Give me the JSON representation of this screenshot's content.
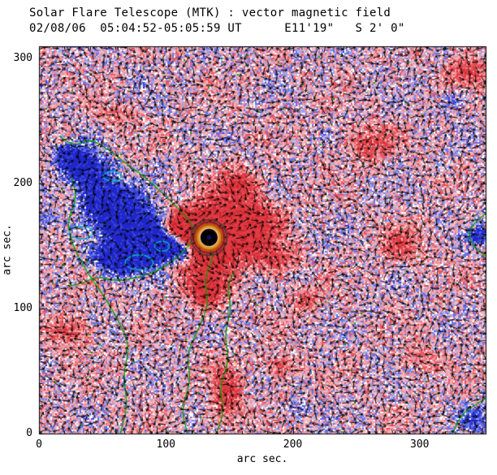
{
  "header": {
    "title_line1": "Solar Flare Telescope (MTK) : vector magnetic field",
    "title_line2": "02/08/06  05:04:52-05:05:59 UT      E11'19\"   S 2' 0\""
  },
  "chart_data": {
    "type": "heatmap",
    "title": "Solar Flare Telescope (MTK) : vector magnetic field",
    "subtitle": "02/08/06  05:04:52-05:05:59 UT      E11'19\"   S 2' 0\"",
    "xlabel": "arc sec.",
    "ylabel": "arc sec.",
    "xlim": [
      0,
      352
    ],
    "ylim": [
      0,
      310
    ],
    "xticks": [
      0,
      100,
      200,
      300
    ],
    "yticks": [
      0,
      100,
      200,
      300
    ],
    "minor_tick_step": 20,
    "grid": false,
    "legend": "none",
    "seed": 1337,
    "base_bias": 0.05,
    "vector_grid_step": 6,
    "colors": {
      "background": "#ffffff",
      "box": "#000000",
      "vector": "#000000",
      "positive_weak": "#f5b9c1",
      "positive_mid": "#ef949c",
      "positive_strong": "#e65a60",
      "positive_max": "#e03a42",
      "positive_deep": "#c8242c",
      "negative_weak": "#9aa2ee",
      "negative_mid": "#6672e6",
      "negative_strong": "#3a46dc",
      "negative_max": "#2026c8",
      "speckle_white": "#ffffff",
      "speckle_lavender": "#b9bce9",
      "contour_green": "#00a000",
      "contour_cyan": "#00c4c4"
    },
    "sunspot": {
      "x": 134,
      "y": 157,
      "core_radius_px": 10.5,
      "core_color": "#000000",
      "inner_dot": {
        "r": 3,
        "color": "#101060"
      },
      "rings": [
        {
          "r": 22,
          "color": "#3a3a3a",
          "w": 1.5
        },
        {
          "r": 19,
          "color": "#8a1c1c",
          "w": 2
        },
        {
          "r": 16,
          "color": "#b85410",
          "w": 2.5
        },
        {
          "r": 13.5,
          "color": "#d49a10",
          "w": 2.5
        },
        {
          "r": 11.5,
          "color": "#f0e4b8",
          "w": 1.2
        }
      ]
    },
    "positive_blobs": [
      [
        134,
        157,
        2.1,
        26,
        22
      ],
      [
        132,
        115,
        0.8,
        16,
        14
      ],
      [
        168,
        168,
        0.9,
        20,
        16
      ],
      [
        158,
        198,
        0.7,
        16,
        13
      ],
      [
        112,
        165,
        0.9,
        10,
        8
      ],
      [
        185,
        140,
        0.6,
        16,
        12
      ],
      [
        260,
        232,
        0.45,
        18,
        14
      ],
      [
        338,
        290,
        0.5,
        16,
        13
      ],
      [
        286,
        150,
        0.45,
        16,
        13
      ],
      [
        148,
        30,
        0.6,
        12,
        24
      ],
      [
        190,
        54,
        0.45,
        12,
        10
      ],
      [
        24,
        82,
        0.5,
        16,
        12
      ],
      [
        212,
        107,
        0.4,
        12,
        10
      ],
      [
        60,
        255,
        0.35,
        14,
        10
      ],
      [
        300,
        60,
        0.35,
        14,
        10
      ]
    ],
    "negative_blobs": [
      [
        55,
        185,
        1.2,
        20,
        16
      ],
      [
        75,
        165,
        1.4,
        20,
        16
      ],
      [
        90,
        150,
        1.2,
        16,
        12
      ],
      [
        65,
        140,
        1.2,
        20,
        12
      ],
      [
        38,
        210,
        1.0,
        16,
        13
      ],
      [
        25,
        222,
        0.8,
        12,
        10
      ],
      [
        105,
        150,
        1.0,
        12,
        10
      ],
      [
        116,
        145,
        0.8,
        9,
        8
      ],
      [
        347,
        158,
        0.7,
        9,
        7
      ],
      [
        345,
        12,
        0.5,
        12,
        9
      ],
      [
        330,
        268,
        0.4,
        10,
        8
      ],
      [
        5,
        172,
        0.4,
        8,
        8
      ],
      [
        205,
        18,
        0.3,
        10,
        8
      ]
    ],
    "green_contours": [
      [
        [
          64,
          0
        ],
        [
          70,
          22
        ],
        [
          66,
          48
        ],
        [
          72,
          70
        ],
        [
          62,
          92
        ],
        [
          50,
          112
        ],
        [
          36,
          132
        ],
        [
          26,
          152
        ],
        [
          22,
          170
        ],
        [
          30,
          188
        ],
        [
          26,
          205
        ]
      ],
      [
        [
          117,
          0
        ],
        [
          112,
          20
        ],
        [
          120,
          42
        ],
        [
          116,
          64
        ],
        [
          126,
          84
        ],
        [
          134,
          104
        ],
        [
          130,
          124
        ],
        [
          138,
          142
        ],
        [
          134,
          152
        ]
      ],
      [
        [
          140,
          0
        ],
        [
          146,
          18
        ],
        [
          142,
          38
        ],
        [
          150,
          58
        ],
        [
          146,
          80
        ],
        [
          152,
          100
        ],
        [
          148,
          118
        ],
        [
          154,
          130
        ]
      ],
      [
        [
          16,
          238
        ],
        [
          28,
          230
        ],
        [
          40,
          236
        ],
        [
          54,
          228
        ],
        [
          66,
          218
        ],
        [
          80,
          208
        ],
        [
          94,
          196
        ],
        [
          106,
          184
        ],
        [
          118,
          172
        ],
        [
          124,
          160
        ],
        [
          118,
          150
        ],
        [
          110,
          142
        ],
        [
          100,
          134
        ],
        [
          88,
          128
        ],
        [
          74,
          124
        ],
        [
          60,
          122
        ],
        [
          46,
          126
        ],
        [
          34,
          120
        ],
        [
          22,
          118
        ]
      ],
      [
        [
          326,
          0
        ],
        [
          332,
          14
        ],
        [
          342,
          22
        ],
        [
          352,
          28
        ]
      ],
      [
        [
          352,
          142
        ],
        [
          342,
          150
        ],
        [
          338,
          160
        ],
        [
          344,
          170
        ],
        [
          352,
          176
        ]
      ]
    ],
    "cyan_contours": [
      [
        33,
        161,
        9,
        5
      ],
      [
        79,
        137,
        11,
        6
      ],
      [
        58,
        206,
        7,
        4
      ],
      [
        97,
        150,
        6,
        4
      ]
    ]
  }
}
